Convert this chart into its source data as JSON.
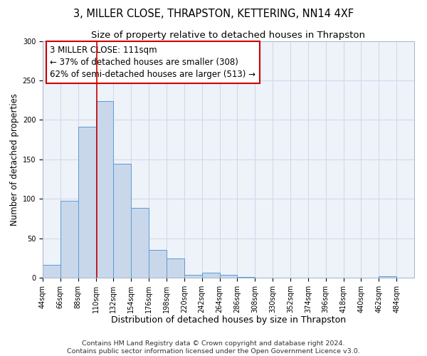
{
  "title": "3, MILLER CLOSE, THRAPSTON, KETTERING, NN14 4XF",
  "subtitle": "Size of property relative to detached houses in Thrapston",
  "xlabel": "Distribution of detached houses by size in Thrapston",
  "ylabel": "Number of detached properties",
  "bar_edges": [
    44,
    66,
    88,
    110,
    132,
    154,
    176,
    198,
    220,
    242,
    264,
    286,
    308,
    330,
    352,
    374,
    396,
    418,
    440,
    462,
    484
  ],
  "bar_heights": [
    16,
    97,
    191,
    224,
    144,
    88,
    35,
    24,
    4,
    6,
    4,
    1,
    0,
    0,
    0,
    0,
    0,
    0,
    0,
    2
  ],
  "bar_color": "#c8d8ea",
  "bar_edge_color": "#5b9bd5",
  "vline_x": 111,
  "vline_color": "#cc0000",
  "annotation_line1": "3 MILLER CLOSE: 111sqm",
  "annotation_line2": "← 37% of detached houses are smaller (308)",
  "annotation_line3": "62% of semi-detached houses are larger (513) →",
  "annotation_box_color": "#cc0000",
  "ylim": [
    0,
    300
  ],
  "yticks": [
    0,
    50,
    100,
    150,
    200,
    250,
    300
  ],
  "xtick_labels": [
    "44sqm",
    "66sqm",
    "88sqm",
    "110sqm",
    "132sqm",
    "154sqm",
    "176sqm",
    "198sqm",
    "220sqm",
    "242sqm",
    "264sqm",
    "286sqm",
    "308sqm",
    "330sqm",
    "352sqm",
    "374sqm",
    "396sqm",
    "418sqm",
    "440sqm",
    "462sqm",
    "484sqm"
  ],
  "xtick_positions": [
    44,
    66,
    88,
    110,
    132,
    154,
    176,
    198,
    220,
    242,
    264,
    286,
    308,
    330,
    352,
    374,
    396,
    418,
    440,
    462,
    484
  ],
  "grid_color": "#cdd8ea",
  "bg_color": "#eef2f9",
  "footer_text": "Contains HM Land Registry data © Crown copyright and database right 2024.\nContains public sector information licensed under the Open Government Licence v3.0.",
  "title_fontsize": 10.5,
  "subtitle_fontsize": 9.5,
  "xlabel_fontsize": 9,
  "ylabel_fontsize": 8.5,
  "tick_fontsize": 7,
  "annotation_fontsize": 8.5,
  "footer_fontsize": 6.8
}
